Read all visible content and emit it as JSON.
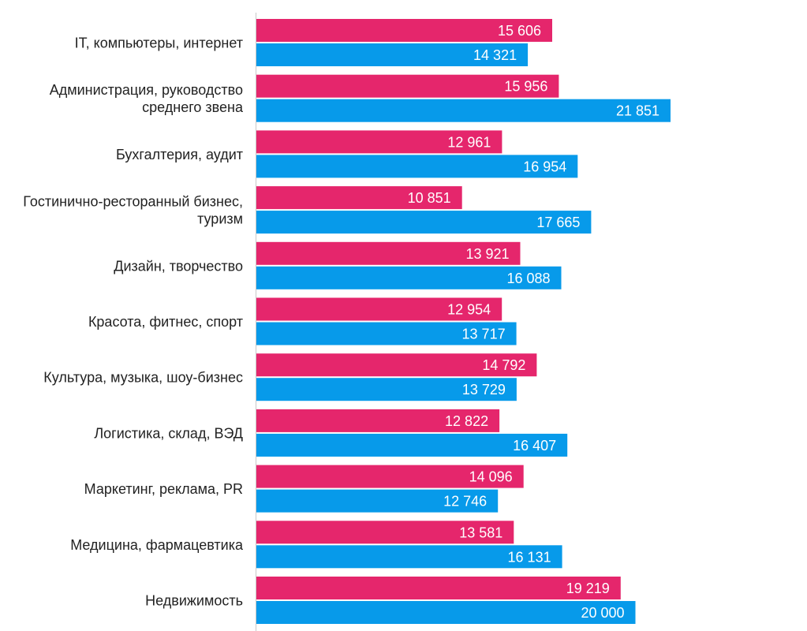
{
  "chart_data": {
    "type": "bar",
    "orientation": "horizontal",
    "categories": [
      [
        "IT, компьютеры, интернет"
      ],
      [
        "Администрация, руководство",
        "среднего звена"
      ],
      [
        "Бухгалтерия, аудит"
      ],
      [
        "Гостинично-ресторанный бизнес,",
        "туризм"
      ],
      [
        "Дизайн, творчество"
      ],
      [
        "Красота, фитнес, спорт"
      ],
      [
        "Культура, музыка, шоу-бизнес"
      ],
      [
        "Логистика, склад, ВЭД"
      ],
      [
        "Маркетинг, реклама, PR"
      ],
      [
        "Медицина, фармацевтика"
      ],
      [
        "Недвижимость"
      ]
    ],
    "series": [
      {
        "color": "#e5266c",
        "values": [
          15606,
          15956,
          12961,
          10851,
          13921,
          12954,
          14792,
          12822,
          14096,
          13581,
          19219
        ],
        "labels": [
          "15 606",
          "15 956",
          "12 961",
          "10 851",
          "13 921",
          "12 954",
          "14 792",
          "12 822",
          "14 096",
          "13 581",
          "19 219"
        ]
      },
      {
        "color": "#079aea",
        "values": [
          14321,
          21851,
          16954,
          17665,
          16088,
          13717,
          13729,
          16407,
          12746,
          16131,
          20000
        ],
        "labels": [
          "14 321",
          "21 851",
          "16 954",
          "17 665",
          "16 088",
          "13 717",
          "13 729",
          "16 407",
          "12 746",
          "16 131",
          "20 000"
        ]
      }
    ],
    "xlim": [
      0,
      21851
    ],
    "grid": false,
    "legend": "none",
    "title": "",
    "xlabel": "",
    "ylabel": ""
  }
}
